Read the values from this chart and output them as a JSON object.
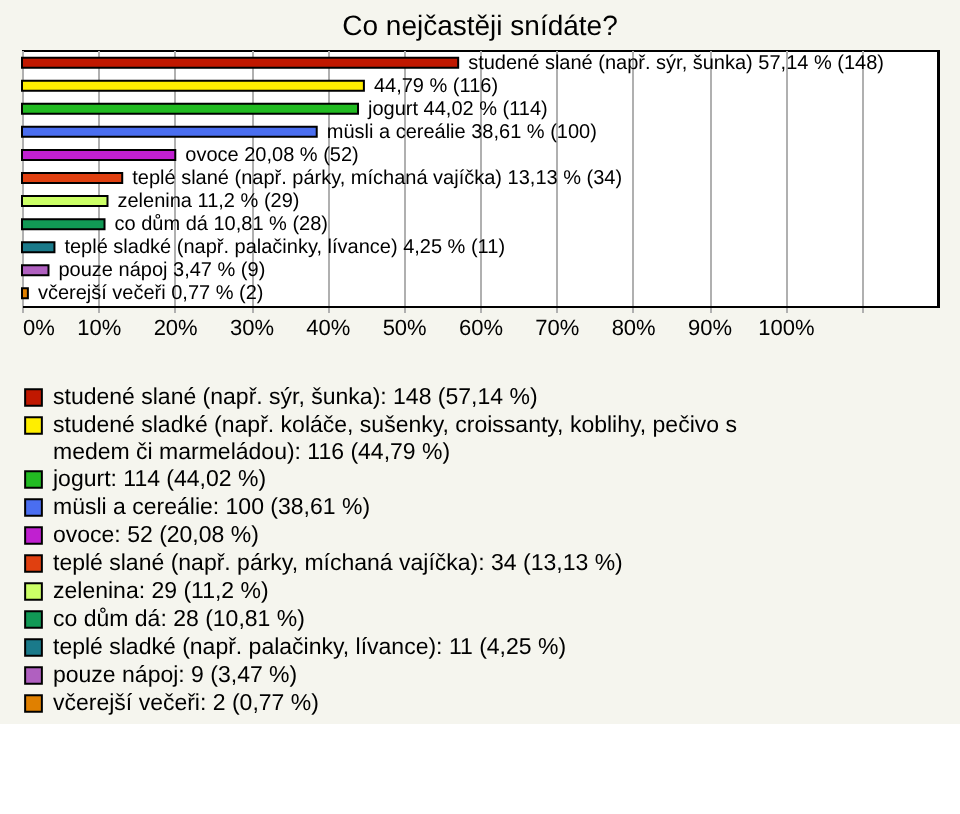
{
  "chart_data": {
    "type": "bar",
    "orientation": "horizontal",
    "title": "Co nejčastěji snídáte?",
    "categories": [
      null,
      null,
      null,
      null,
      null,
      null,
      null,
      null,
      null,
      null,
      null
    ],
    "series": [
      {
        "name": "studené slané (např. sýr, šunka): 148 (57,14 %)",
        "color": "#c01800",
        "values": [
          57.14,
          null,
          null,
          null,
          null,
          null,
          null,
          null,
          null,
          null,
          null
        ],
        "value_labels": [
          "studené slané (např. sýr, šunka) 57,14 % (148)",
          null,
          null,
          null,
          null,
          null,
          null,
          null,
          null,
          null,
          null
        ]
      },
      {
        "name": "studené sladké (např. koláče, sušenky, croissanty, koblihy, pečivo s medem či marmeládou): 116 (44,79 %)",
        "color": "#ffee00",
        "values": [
          null,
          44.79,
          null,
          null,
          null,
          null,
          null,
          null,
          null,
          null,
          null
        ],
        "value_labels": [
          null,
          "44,79 % (116)",
          null,
          null,
          null,
          null,
          null,
          null,
          null,
          null,
          null
        ]
      },
      {
        "name": "jogurt: 114 (44,02 %)",
        "color": "#22bb22",
        "values": [
          null,
          null,
          44.02,
          null,
          null,
          null,
          null,
          null,
          null,
          null,
          null
        ],
        "value_labels": [
          null,
          null,
          "jogurt 44,02 % (114)",
          null,
          null,
          null,
          null,
          null,
          null,
          null,
          null
        ]
      },
      {
        "name": "müsli a cereálie: 100 (38,61 %)",
        "color": "#4a6ef0",
        "values": [
          null,
          null,
          null,
          38.61,
          null,
          null,
          null,
          null,
          null,
          null,
          null
        ],
        "value_labels": [
          null,
          null,
          null,
          "müsli a cereálie 38,61 % (100)",
          null,
          null,
          null,
          null,
          null,
          null,
          null
        ]
      },
      {
        "name": "ovoce: 52 (20,08 %)",
        "color": "#c020d0",
        "values": [
          null,
          null,
          null,
          null,
          20.08,
          null,
          null,
          null,
          null,
          null,
          null
        ],
        "value_labels": [
          null,
          null,
          null,
          null,
          "ovoce 20,08 % (52)",
          null,
          null,
          null,
          null,
          null,
          null
        ]
      },
      {
        "name": "teplé slané (např. párky, míchaná vajíčka): 34 (13,13 %)",
        "color": "#e04010",
        "values": [
          null,
          null,
          null,
          null,
          null,
          13.13,
          null,
          null,
          null,
          null,
          null
        ],
        "value_labels": [
          null,
          null,
          null,
          null,
          null,
          "teplé slané (např. párky, míchaná vajíčka) 13,13 % (34)",
          null,
          null,
          null,
          null,
          null
        ]
      },
      {
        "name": "zelenina: 29 (11,2 %)",
        "color": "#ccff66",
        "values": [
          null,
          null,
          null,
          null,
          null,
          null,
          11.2,
          null,
          null,
          null,
          null
        ],
        "value_labels": [
          null,
          null,
          null,
          null,
          null,
          null,
          "zelenina 11,2 % (29)",
          null,
          null,
          null,
          null
        ]
      },
      {
        "name": "co dům dá: 28 (10,81 %)",
        "color": "#119955",
        "values": [
          null,
          null,
          null,
          null,
          null,
          null,
          null,
          10.81,
          null,
          null,
          null
        ],
        "value_labels": [
          null,
          null,
          null,
          null,
          null,
          null,
          null,
          "co dům dá 10,81 % (28)",
          null,
          null,
          null
        ]
      },
      {
        "name": "teplé sladké (např. palačinky, lívance): 11 (4,25 %)",
        "color": "#1a7a8a",
        "values": [
          null,
          null,
          null,
          null,
          null,
          null,
          null,
          null,
          4.25,
          null,
          null
        ],
        "value_labels": [
          null,
          null,
          null,
          null,
          null,
          null,
          null,
          null,
          "teplé sladké (např. palačinky, lívance) 4,25 % (11)",
          null,
          null
        ]
      },
      {
        "name": "pouze nápoj: 9 (3,47 %)",
        "color": "#b060c0",
        "values": [
          null,
          null,
          null,
          null,
          null,
          null,
          null,
          null,
          null,
          3.47,
          null
        ],
        "value_labels": [
          null,
          null,
          null,
          null,
          null,
          null,
          null,
          null,
          null,
          "pouze nápoj 3,47 % (9)",
          null
        ]
      },
      {
        "name": "včerejší večeři: 2 (0,77 %)",
        "color": "#e08000",
        "values": [
          null,
          null,
          null,
          null,
          null,
          null,
          null,
          null,
          null,
          null,
          0.77
        ],
        "value_labels": [
          null,
          null,
          null,
          null,
          null,
          null,
          null,
          null,
          null,
          null,
          "včerejší večeři 0,77 % (2)"
        ]
      }
    ],
    "xlim": [
      0,
      120
    ],
    "xticks": [
      {
        "value": 0,
        "label": "0%"
      },
      {
        "value": 10,
        "label": "10%"
      },
      {
        "value": 20,
        "label": "20%"
      },
      {
        "value": 30,
        "label": "30%"
      },
      {
        "value": 40,
        "label": "40%"
      },
      {
        "value": 50,
        "label": "50%"
      },
      {
        "value": 60,
        "label": "60%"
      },
      {
        "value": 70,
        "label": "70%"
      },
      {
        "value": 80,
        "label": "80%"
      },
      {
        "value": 90,
        "label": "90%"
      },
      {
        "value": 100,
        "label": "100%"
      },
      {
        "value": 110,
        "label": null
      }
    ],
    "grid": "x",
    "legend": "bottom",
    "tick_labels": "x"
  }
}
